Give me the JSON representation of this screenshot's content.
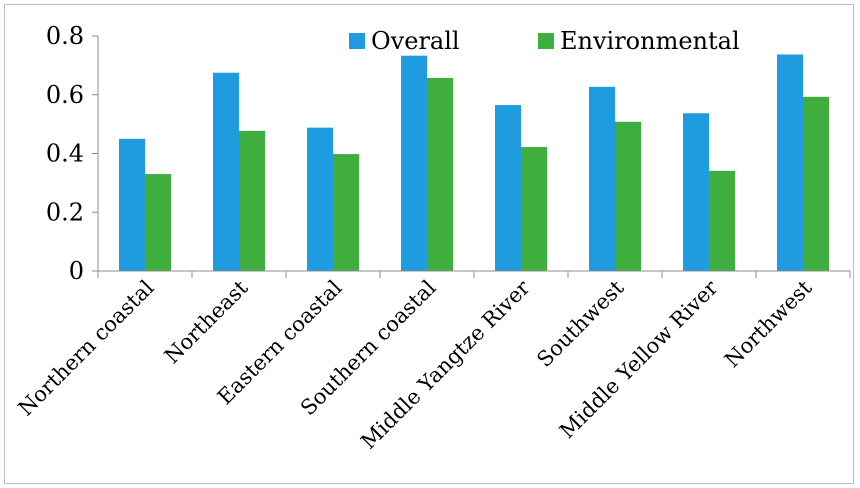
{
  "chart_data": {
    "type": "bar",
    "categories": [
      "Northern coastal",
      "Northeast",
      "Eastern coastal",
      "Southern coastal",
      "Middle Yangtze River",
      "Southwest",
      "Middle Yellow River",
      "Northwest"
    ],
    "series": [
      {
        "name": "Overall",
        "values": [
          0.45,
          0.675,
          0.488,
          0.733,
          0.565,
          0.627,
          0.537,
          0.737
        ],
        "color": "#1f9ce0"
      },
      {
        "name": "Environmental",
        "values": [
          0.33,
          0.477,
          0.398,
          0.657,
          0.422,
          0.508,
          0.341,
          0.593
        ],
        "color": "#3fae3f"
      }
    ],
    "yticks": [
      "0",
      "0.2",
      "0.4",
      "0.6",
      "0.8"
    ],
    "ytick_values": [
      0,
      0.2,
      0.4,
      0.6,
      0.8
    ],
    "ylim": [
      0,
      0.8
    ],
    "grid": false,
    "legend_position": "top-right"
  }
}
